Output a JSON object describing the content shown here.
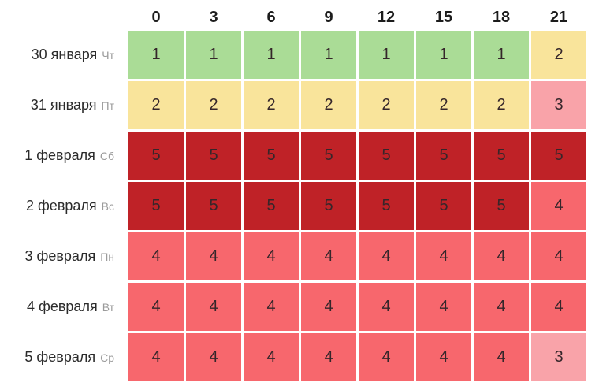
{
  "table": {
    "hours": [
      "0",
      "3",
      "6",
      "9",
      "12",
      "15",
      "18",
      "21"
    ],
    "rows": [
      {
        "date": "30 января",
        "weekday": "Чт",
        "values": [
          1,
          1,
          1,
          1,
          1,
          1,
          1,
          2
        ]
      },
      {
        "date": "31 января",
        "weekday": "Пт",
        "values": [
          2,
          2,
          2,
          2,
          2,
          2,
          2,
          3
        ]
      },
      {
        "date": "1 февраля",
        "weekday": "Сб",
        "values": [
          5,
          5,
          5,
          5,
          5,
          5,
          5,
          5
        ]
      },
      {
        "date": "2 февраля",
        "weekday": "Вс",
        "values": [
          5,
          5,
          5,
          5,
          5,
          5,
          5,
          4
        ]
      },
      {
        "date": "3 февраля",
        "weekday": "Пн",
        "values": [
          4,
          4,
          4,
          4,
          4,
          4,
          4,
          4
        ]
      },
      {
        "date": "4 февраля",
        "weekday": "Вт",
        "values": [
          4,
          4,
          4,
          4,
          4,
          4,
          4,
          4
        ]
      },
      {
        "date": "5 февраля",
        "weekday": "Ср",
        "values": [
          4,
          4,
          4,
          4,
          4,
          4,
          4,
          3
        ]
      }
    ],
    "value_colors": {
      "1": "#aadc96",
      "2": "#f9e49b",
      "3": "#f9a3a9",
      "4": "#f7676d",
      "5": "#bf2227"
    }
  },
  "chart_data": {
    "type": "heatmap",
    "title": "",
    "xlabel": "",
    "ylabel": "",
    "x": [
      "0",
      "3",
      "6",
      "9",
      "12",
      "15",
      "18",
      "21"
    ],
    "y": [
      "30 января Чт",
      "31 января Пт",
      "1 февраля Сб",
      "2 февраля Вс",
      "3 февраля Пн",
      "4 февраля Вт",
      "5 февраля Ср"
    ],
    "values": [
      [
        1,
        1,
        1,
        1,
        1,
        1,
        1,
        2
      ],
      [
        2,
        2,
        2,
        2,
        2,
        2,
        2,
        3
      ],
      [
        5,
        5,
        5,
        5,
        5,
        5,
        5,
        5
      ],
      [
        5,
        5,
        5,
        5,
        5,
        5,
        5,
        4
      ],
      [
        4,
        4,
        4,
        4,
        4,
        4,
        4,
        4
      ],
      [
        4,
        4,
        4,
        4,
        4,
        4,
        4,
        4
      ],
      [
        4,
        4,
        4,
        4,
        4,
        4,
        4,
        3
      ]
    ],
    "color_scale": {
      "1": "#aadc96",
      "2": "#f9e49b",
      "3": "#f9a3a9",
      "4": "#f7676d",
      "5": "#bf2227"
    },
    "legend_position": "none",
    "grid": "white gaps between cells"
  }
}
